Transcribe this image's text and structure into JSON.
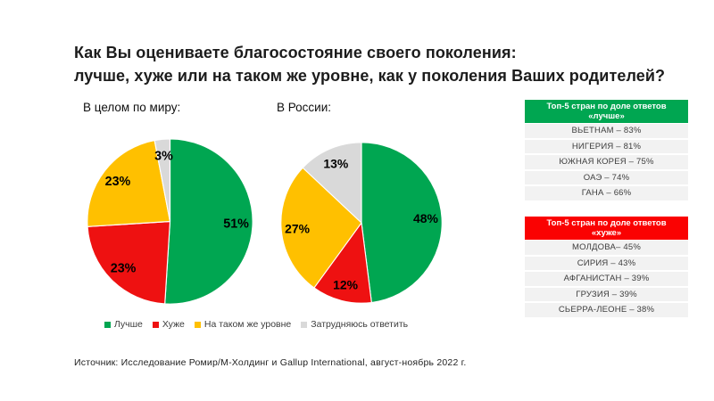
{
  "title": {
    "line1": "Как Вы оцениваете благосостояние своего поколения:",
    "line2": "лучше, хуже или на таком же уровне, как у поколения Ваших родителей?"
  },
  "colors": {
    "green": "#00A651",
    "red": "#EE1111",
    "yellow": "#FFC000",
    "gray": "#D9D9D9",
    "table_header_green": "#00A651",
    "table_header_red": "#FA0202",
    "table_row_bg": "#F2F2F2"
  },
  "chart_data": [
    {
      "type": "pie",
      "title": "В целом по миру:",
      "categories": [
        "Лучше",
        "Хуже",
        "На таком же уровне",
        "Затрудняюсь ответить"
      ],
      "values": [
        51,
        23,
        23,
        3
      ],
      "value_labels": [
        "51%",
        "23%",
        "23%",
        "3%"
      ],
      "colors": [
        "#00A651",
        "#EE1111",
        "#FFC000",
        "#D9D9D9"
      ],
      "slice_names": [
        "better",
        "worse",
        "same-level",
        "hard-to-answer"
      ],
      "start_angle": 0,
      "direction": "clockwise",
      "legend_position": "bottom"
    },
    {
      "type": "pie",
      "title": "В России:",
      "categories": [
        "Лучше",
        "Хуже",
        "На таком же уровне",
        "Затрудняюсь ответить"
      ],
      "values": [
        48,
        12,
        27,
        13
      ],
      "value_labels": [
        "48%",
        "12%",
        "27%",
        "13%"
      ],
      "colors": [
        "#00A651",
        "#EE1111",
        "#FFC000",
        "#D9D9D9"
      ],
      "slice_names": [
        "better",
        "worse",
        "same-level",
        "hard-to-answer"
      ],
      "start_angle": 0,
      "direction": "clockwise",
      "legend_position": "bottom"
    },
    {
      "type": "table",
      "header_line1": "Топ-5 стран по доле ответов",
      "header_line2": "«лучше»",
      "header_color": "#00A651",
      "rows": [
        {
          "label": "ВЬЕТНАМ",
          "value": 83,
          "display": "ВЬЕТНАМ – 83%"
        },
        {
          "label": "НИГЕРИЯ",
          "value": 81,
          "display": "НИГЕРИЯ – 81%"
        },
        {
          "label": "ЮЖНАЯ КОРЕЯ",
          "value": 75,
          "display": "ЮЖНАЯ КОРЕЯ – 75%"
        },
        {
          "label": "ОАЭ",
          "value": 74,
          "display": "ОАЭ – 74%"
        },
        {
          "label": "ГАНА",
          "value": 66,
          "display": "ГАНА – 66%"
        }
      ]
    },
    {
      "type": "table",
      "header_line1": "Топ-5 стран по доле ответов",
      "header_line2": "«хуже»",
      "header_color": "#FA0202",
      "rows": [
        {
          "label": "МОЛДОВА",
          "value": 45,
          "display": "МОЛДОВА– 45%"
        },
        {
          "label": "СИРИЯ",
          "value": 43,
          "display": "СИРИЯ – 43%"
        },
        {
          "label": "АФГАНИСТАН",
          "value": 39,
          "display": "АФГАНИСТАН – 39%"
        },
        {
          "label": "ГРУЗИЯ",
          "value": 39,
          "display": "ГРУЗИЯ – 39%"
        },
        {
          "label": "СЬЕРРА-ЛЕОНЕ",
          "value": 38,
          "display": "СЬЕРРА-ЛЕОНЕ – 38%"
        }
      ]
    }
  ],
  "legend": {
    "items": [
      {
        "label": "Лучше",
        "color": "#00A651",
        "name": "better"
      },
      {
        "label": "Хуже",
        "color": "#EE1111",
        "name": "worse"
      },
      {
        "label": "На таком же уровне",
        "color": "#FFC000",
        "name": "same-level"
      },
      {
        "label": "Затрудняюсь ответить",
        "color": "#D9D9D9",
        "name": "hard-to-answer"
      }
    ]
  },
  "source": "Источник: Исследование Ромир/М-Холдинг и Gallup International, август-ноябрь 2022 г."
}
